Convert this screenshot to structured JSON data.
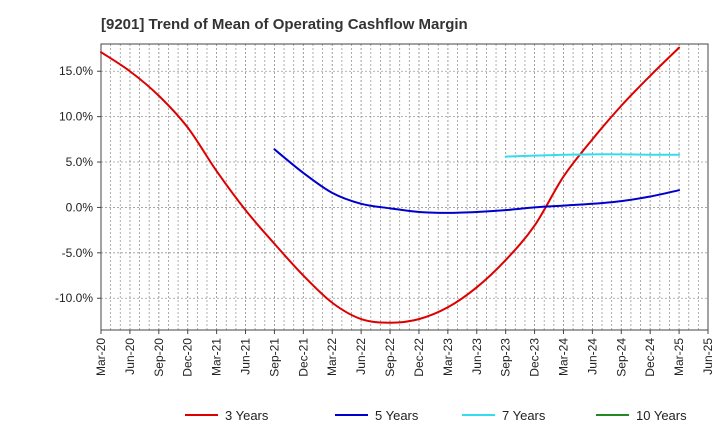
{
  "chart_data": {
    "type": "line",
    "title": "[9201]  Trend of Mean of Operating Cashflow Margin",
    "xlabel": "",
    "ylabel": "",
    "x_ticks": [
      "Mar-20",
      "Jun-20",
      "Sep-20",
      "Dec-20",
      "Mar-21",
      "Jun-21",
      "Sep-21",
      "Dec-21",
      "Mar-22",
      "Jun-22",
      "Sep-22",
      "Dec-22",
      "Mar-23",
      "Jun-23",
      "Sep-23",
      "Dec-23",
      "Mar-24",
      "Jun-24",
      "Sep-24",
      "Dec-24",
      "Mar-25",
      "Jun-25"
    ],
    "y_ticks": [
      -10,
      -5,
      0,
      5,
      10,
      15
    ],
    "y_tick_labels": [
      "-10.0%",
      "-5.0%",
      "0.0%",
      "5.0%",
      "10.0%",
      "15.0%"
    ],
    "ylim": [
      -13.5,
      18.0
    ],
    "grid": true,
    "legend_position": "bottom",
    "series": [
      {
        "name": "3 Years",
        "color": "#dd0000",
        "x": [
          "Mar-20",
          "Jun-20",
          "Sep-20",
          "Dec-20",
          "Mar-21",
          "Jun-21",
          "Sep-21",
          "Dec-21",
          "Mar-22",
          "Jun-22",
          "Sep-22",
          "Dec-22",
          "Mar-23",
          "Jun-23",
          "Sep-23",
          "Dec-23",
          "Mar-24",
          "Jun-24",
          "Sep-24",
          "Dec-24",
          "Mar-25"
        ],
        "values": [
          17.1,
          15.0,
          12.3,
          8.8,
          4.0,
          -0.3,
          -4.0,
          -7.5,
          -10.5,
          -12.3,
          -12.7,
          -12.3,
          -11.0,
          -8.8,
          -5.8,
          -2.0,
          3.4,
          7.5,
          11.2,
          14.5,
          17.6
        ]
      },
      {
        "name": "5 Years",
        "color": "#0000cc",
        "x": [
          "Sep-21",
          "Dec-21",
          "Mar-22",
          "Jun-22",
          "Sep-22",
          "Dec-22",
          "Mar-23",
          "Jun-23",
          "Sep-23",
          "Dec-23",
          "Mar-24",
          "Jun-24",
          "Sep-24",
          "Dec-24",
          "Mar-25"
        ],
        "values": [
          6.4,
          3.8,
          1.6,
          0.4,
          -0.1,
          -0.5,
          -0.6,
          -0.5,
          -0.3,
          0.0,
          0.2,
          0.4,
          0.7,
          1.2,
          1.9
        ]
      },
      {
        "name": "7 Years",
        "color": "#33ddee",
        "x": [
          "Sep-23",
          "Dec-23",
          "Mar-24",
          "Jun-24",
          "Sep-24",
          "Dec-24",
          "Mar-25"
        ],
        "values": [
          5.6,
          5.7,
          5.8,
          5.85,
          5.85,
          5.8,
          5.8
        ]
      },
      {
        "name": "10 Years",
        "color": "#228822",
        "x": [],
        "values": []
      }
    ]
  }
}
